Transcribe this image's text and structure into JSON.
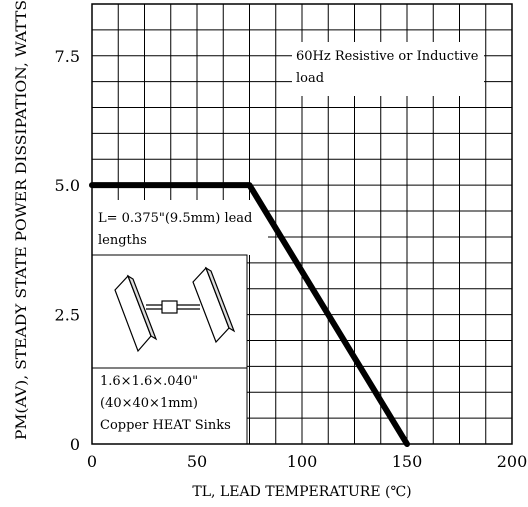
{
  "chart_data": {
    "type": "line",
    "title": "",
    "xlabel": "TL, LEAD TEMPERATURE (℃)",
    "ylabel": "PM(AV), STEADY STATE POWER DISSIPATION, WATTS",
    "xlim": [
      0,
      200
    ],
    "ylim": [
      0,
      8.5
    ],
    "x_ticks": [
      0,
      50,
      100,
      150,
      200
    ],
    "x_tick_labels": [
      "0",
      "50",
      "100",
      "150",
      "200"
    ],
    "y_ticks": [
      0,
      2.5,
      5.0,
      7.5
    ],
    "y_tick_labels": [
      "0",
      "2.5",
      "5.0",
      "7.5"
    ],
    "grid": true,
    "series": [
      {
        "x": [
          0,
          75,
          150
        ],
        "y": [
          5.0,
          5.0,
          0
        ]
      }
    ],
    "annotations": {
      "top_right": [
        "60Hz Resistive or Inductive",
        "load"
      ],
      "lead_length": [
        "L= 0.375\"(9.5mm) lead",
        "lengths"
      ],
      "heat_sink": [
        "1.6×1.6×.040\"",
        "(40×40×1mm)",
        "Copper HEAT Sinks"
      ]
    }
  }
}
